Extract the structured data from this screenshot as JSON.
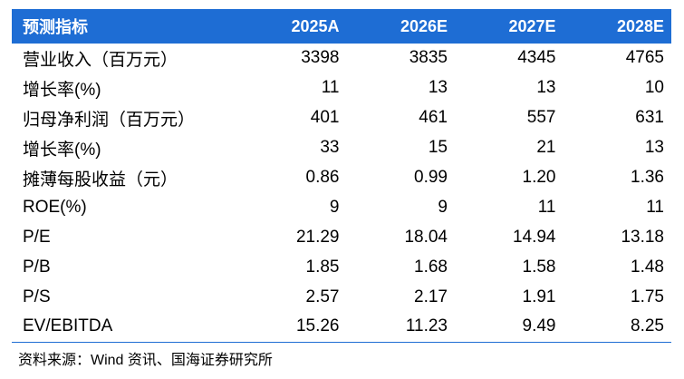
{
  "table": {
    "columns": [
      "预测指标",
      "2025A",
      "2026E",
      "2027E",
      "2028E"
    ],
    "rows": [
      {
        "label": "营业收入（百万元）",
        "values": [
          "3398",
          "3835",
          "4345",
          "4765"
        ]
      },
      {
        "label": "增长率(%)",
        "values": [
          "11",
          "13",
          "13",
          "10"
        ]
      },
      {
        "label": "归母净利润（百万元）",
        "values": [
          "401",
          "461",
          "557",
          "631"
        ]
      },
      {
        "label": "增长率(%)",
        "values": [
          "33",
          "15",
          "21",
          "13"
        ]
      },
      {
        "label": "摊薄每股收益（元）",
        "values": [
          "0.86",
          "0.99",
          "1.20",
          "1.36"
        ]
      },
      {
        "label": "ROE(%)",
        "values": [
          "9",
          "9",
          "11",
          "11"
        ]
      },
      {
        "label": "P/E",
        "values": [
          "21.29",
          "18.04",
          "14.94",
          "13.18"
        ]
      },
      {
        "label": "P/B",
        "values": [
          "1.85",
          "1.68",
          "1.58",
          "1.48"
        ]
      },
      {
        "label": "P/S",
        "values": [
          "2.57",
          "2.17",
          "1.91",
          "1.75"
        ]
      },
      {
        "label": "EV/EBITDA",
        "values": [
          "15.26",
          "11.23",
          "9.49",
          "8.25"
        ]
      }
    ]
  },
  "source": "资料来源：Wind 资讯、国海证券研究所",
  "colors": {
    "header_bg": "#1e6dd4",
    "header_text": "#ffffff"
  }
}
